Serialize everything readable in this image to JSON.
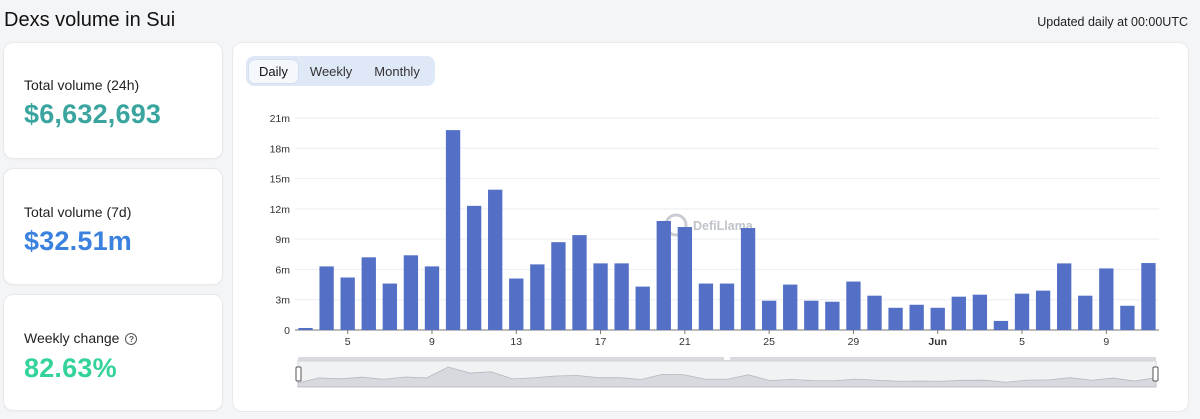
{
  "header": {
    "title": "Dexs volume in Sui",
    "updated": "Updated daily at 00:00UTC"
  },
  "stats": [
    {
      "label": "Total volume (24h)",
      "value": "$6,632,693",
      "color": "#3aa59f"
    },
    {
      "label": "Total volume (7d)",
      "value": "$32.51m",
      "color": "#3b82df"
    },
    {
      "label": "Weekly change",
      "value": "82.63%",
      "color": "#34d399"
    }
  ],
  "help_icon": "question-circle-icon",
  "tabs": [
    {
      "label": "Daily",
      "active": true
    },
    {
      "label": "Weekly",
      "active": false
    },
    {
      "label": "Monthly",
      "active": false
    }
  ],
  "watermark": "DefiLlama",
  "colors": {
    "bar": "#5470c6",
    "grid": "#eceef2",
    "axis": "#333333"
  },
  "chart_data": {
    "type": "bar",
    "x_tick_labels": [
      "5",
      "9",
      "13",
      "17",
      "21",
      "25",
      "29",
      "Jun",
      "5",
      "9"
    ],
    "y_tick_labels": [
      "0",
      "3m",
      "6m",
      "9m",
      "12m",
      "15m",
      "18m",
      "21m"
    ],
    "ylim": [
      0,
      21000000
    ],
    "grid": true,
    "legend": "none",
    "values": [
      200000,
      6300000,
      5200000,
      7200000,
      4600000,
      7400000,
      6300000,
      19800000,
      12300000,
      13900000,
      5100000,
      6500000,
      8700000,
      9400000,
      6600000,
      6600000,
      4300000,
      10800000,
      10200000,
      4600000,
      4600000,
      10100000,
      2900000,
      4500000,
      2900000,
      2800000,
      4800000,
      3400000,
      2200000,
      2500000,
      2200000,
      3300000,
      3500000,
      900000,
      3600000,
      3900000,
      6600000,
      3400000,
      6100000,
      2400000,
      6632693
    ]
  }
}
